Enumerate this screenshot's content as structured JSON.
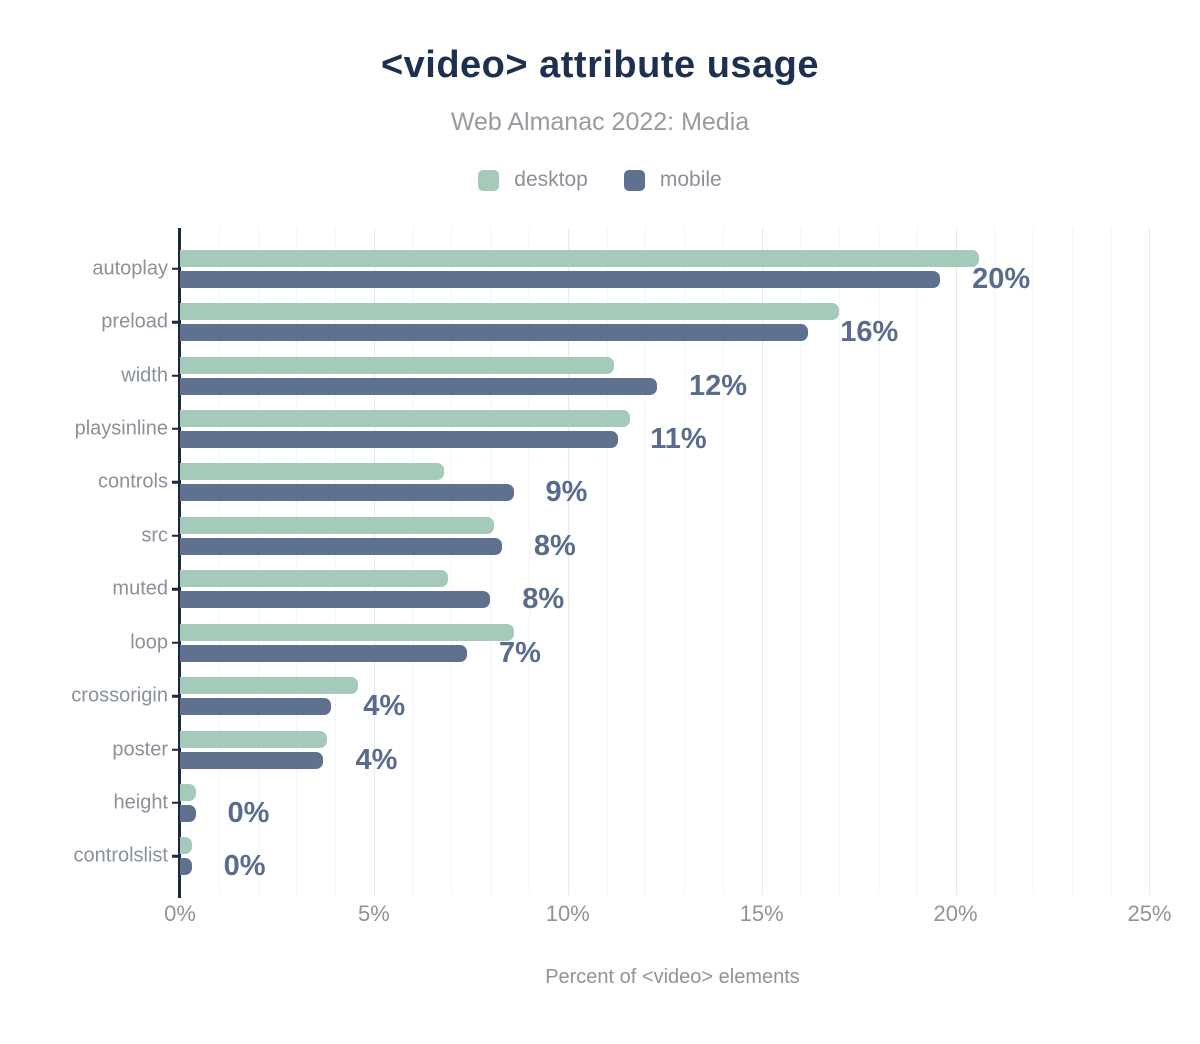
{
  "colors": {
    "desktop": "#a5cab9",
    "mobile": "#5f718e",
    "title": "#1e3050",
    "subtitle": "#9a9aa0",
    "axis": "#1b2944",
    "value_label": "#5a6c8e",
    "tick_label": "#8f949c",
    "category_label": "#8b9199",
    "grid_minor": "#f4f4f6",
    "grid_major": "#e9e9ed"
  },
  "chart_data": {
    "type": "bar",
    "orientation": "horizontal",
    "title": "<video> attribute usage",
    "subtitle": "Web Almanac 2022: Media",
    "xlabel": "Percent of <video> elements",
    "categories": [
      "autoplay",
      "preload",
      "width",
      "playsinline",
      "controls",
      "src",
      "muted",
      "loop",
      "crossorigin",
      "poster",
      "height",
      "controlslist"
    ],
    "series": [
      {
        "name": "desktop",
        "color": "#a5cab9",
        "values": [
          20.6,
          17.0,
          11.2,
          11.6,
          6.8,
          8.1,
          6.9,
          8.6,
          4.6,
          3.8,
          0.4,
          0.3
        ]
      },
      {
        "name": "mobile",
        "color": "#5f718e",
        "values": [
          19.6,
          16.2,
          12.3,
          11.3,
          8.6,
          8.3,
          8.0,
          7.4,
          3.9,
          3.7,
          0.4,
          0.3
        ]
      }
    ],
    "value_labels": [
      "20%",
      "16%",
      "12%",
      "11%",
      "9%",
      "8%",
      "8%",
      "7%",
      "4%",
      "4%",
      "0%",
      "0%"
    ],
    "xlim": [
      0,
      25.4
    ],
    "x_tick_values": [
      0,
      5,
      10,
      15,
      20,
      25
    ],
    "x_tick_labels": [
      "0%",
      "5%",
      "10%",
      "15%",
      "20%",
      "25%"
    ],
    "grid": "vertical, minor every 1%, major every 5%",
    "legend_position": "top-center"
  }
}
